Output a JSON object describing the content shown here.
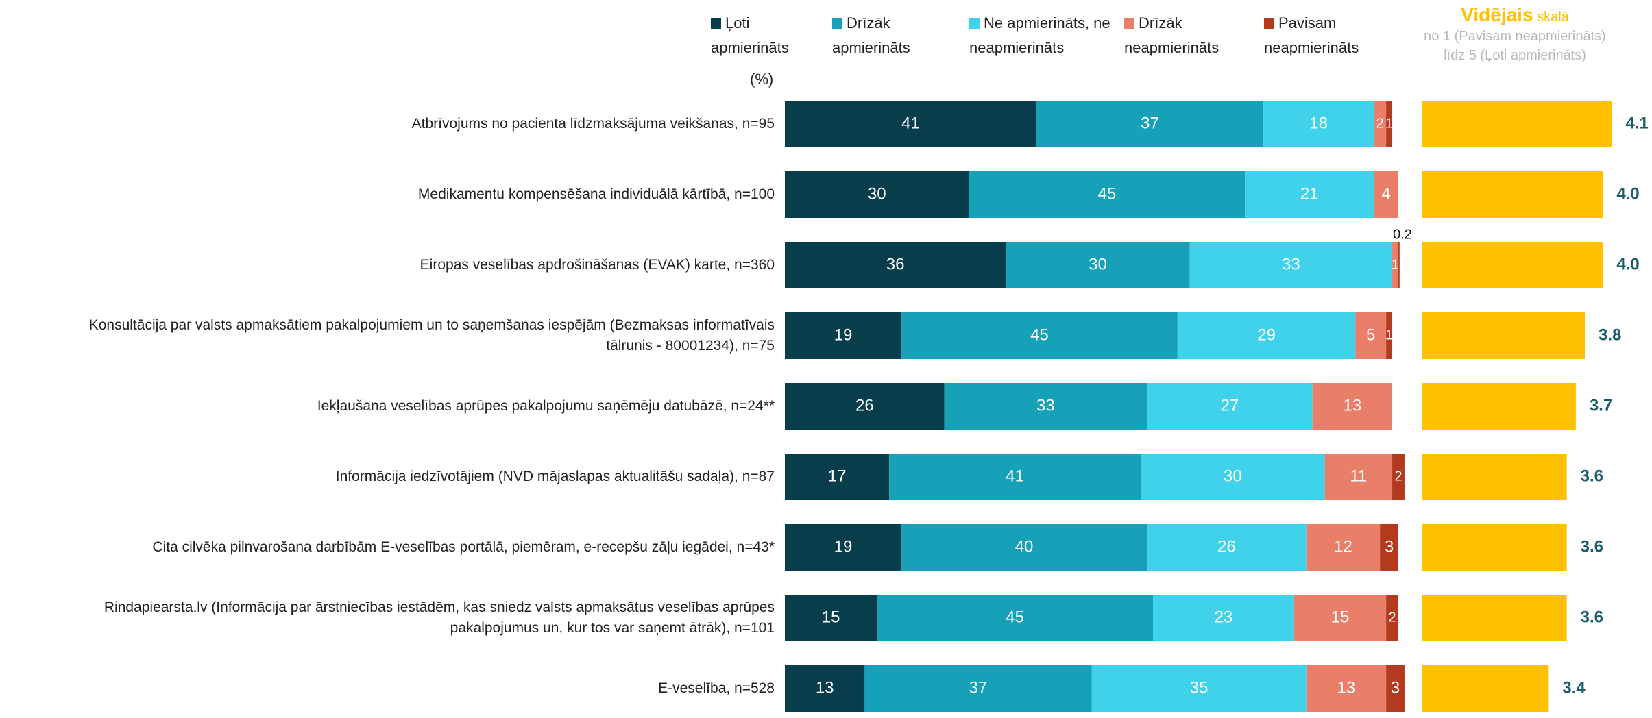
{
  "chart_data": {
    "type": "stacked-bar",
    "unit_label": "(%)",
    "categories": [
      "Atbrīvojums no pacienta līdzmaksājuma veikšanas, n=95",
      "Medikamentu kompensēšana individuālā kārtībā, n=100",
      "Eiropas veselības apdrošināšanas (EVAK) karte, n=360",
      "Konsultācija par valsts apmaksātiem pakalpojumiem un to saņemšanas iespējām (Bezmaksas informatīvais tālrunis - 80001234), n=75",
      "Iekļaušana veselības aprūpes pakalpojumu saņēmēju datubāzē, n=24**",
      "Informācija iedzīvotājiem (NVD mājaslapas aktualitāšu sadaļa), n=87",
      "Cita cilvēka pilnvarošana darbībām E-veselības portālā, piemēram, e-recepšu zāļu iegādei, n=43*",
      "Rindapiearsta.lv (Informācija par ārstniecības iestādēm, kas sniedz valsts apmaksātus veselības aprūpes pakalpojumus un, kur tos var saņemt ātrāk), n=101",
      "E-veselība, n=528"
    ],
    "xlim": [
      0,
      100
    ],
    "series": [
      {
        "name": "Ļoti apmierināts",
        "color": "#083d4b",
        "values": [
          41,
          30,
          36,
          19,
          26,
          17,
          19,
          15,
          13
        ]
      },
      {
        "name": "Drīzāk apmierināts",
        "color": "#16a1b9",
        "values": [
          37,
          45,
          30,
          45,
          33,
          41,
          40,
          45,
          37
        ]
      },
      {
        "name": "Ne apmierināts, ne neapmierināts",
        "color": "#40d2ea",
        "values": [
          18,
          21,
          33,
          29,
          27,
          30,
          26,
          23,
          35
        ]
      },
      {
        "name": "Drīzāk neapmierināts",
        "color": "#e97f69",
        "values": [
          2,
          4,
          1,
          5,
          13,
          11,
          12,
          15,
          13
        ]
      },
      {
        "name": "Pavisam neapmierināts",
        "color": "#b3391f",
        "values": [
          1,
          0,
          0.2,
          1,
          0,
          2,
          3,
          2,
          3
        ]
      }
    ],
    "average": {
      "title": "Vidējais",
      "title_suffix": "skalā",
      "note": "no 1 (Pavisam neapmierināts) līdz 5 (Ļoti apmierināts)",
      "color": "#ffc000",
      "label_color": "#1b5b6b",
      "xlim": [
        2,
        5
      ],
      "values": [
        4.1,
        4.0,
        4.0,
        3.8,
        3.7,
        3.6,
        3.6,
        3.6,
        3.4
      ],
      "value_labels": [
        "4.1",
        "4.0",
        "4.0",
        "3.8",
        "3.7",
        "3.6",
        "3.6",
        "3.6",
        "3.4"
      ]
    }
  }
}
